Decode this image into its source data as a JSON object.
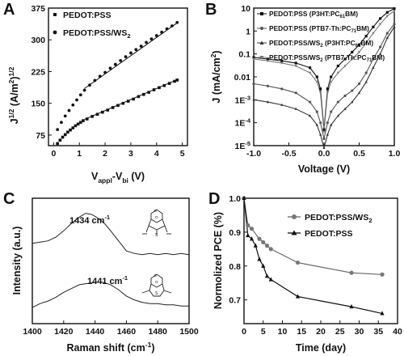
{
  "chart_data": [
    {
      "panel": "A",
      "type": "scatter",
      "xlabel": "V_appl-V_bi (V)",
      "xlabel_parts": {
        "main": "V",
        "sub1": "appl",
        "mid": "-V",
        "sub2": "bi",
        "tail": " (V)"
      },
      "ylabel": "J^1/2 (A/m^2)^1/2",
      "ylabel_parts": {
        "main": "J",
        "sup1": "1/2",
        "mid": " (A/m",
        "sup2": "2",
        "close": ")",
        "sup3": "1/2"
      },
      "xlim": [
        -0.2,
        5.2
      ],
      "ylim": [
        50,
        375
      ],
      "xticks": [
        0,
        1,
        2,
        3,
        4,
        5
      ],
      "yticks": [
        75,
        150,
        225,
        300,
        375
      ],
      "legend_position": "top-left",
      "series": [
        {
          "name": "PEDOT:PSS",
          "name_parts": {
            "main": "PEDOT:PSS",
            "sub": ""
          },
          "marker": "square",
          "fit": [
            [
              1.2,
              112
            ],
            [
              4.8,
              206
            ]
          ],
          "x": [
            0.15,
            0.25,
            0.35,
            0.45,
            0.55,
            0.65,
            0.75,
            0.85,
            0.95,
            1.05,
            1.15,
            1.3,
            1.5,
            1.7,
            1.9,
            2.1,
            2.3,
            2.5,
            2.7,
            2.9,
            3.1,
            3.3,
            3.5,
            3.7,
            3.9,
            4.1,
            4.3,
            4.5,
            4.7,
            4.8
          ],
          "y": [
            55,
            63,
            70,
            76,
            82,
            87,
            92,
            97,
            101,
            105,
            109,
            113,
            119,
            124,
            129,
            134,
            140,
            145,
            150,
            155,
            160,
            166,
            171,
            176,
            182,
            187,
            192,
            197,
            202,
            205
          ]
        },
        {
          "name": "PEDOT:PSS/WS2",
          "name_parts": {
            "main": "PEDOT:PSS/WS",
            "sub": "2"
          },
          "marker": "circle",
          "fit": [
            [
              1.2,
              185
            ],
            [
              4.8,
              340
            ]
          ],
          "x": [
            0.15,
            0.3,
            0.45,
            0.6,
            0.75,
            0.9,
            1.05,
            1.2,
            1.4,
            1.6,
            1.8,
            2.0,
            2.2,
            2.4,
            2.6,
            2.8,
            3.0,
            3.2,
            3.4,
            3.6,
            3.8,
            4.0,
            4.2,
            4.4,
            4.6,
            4.8
          ],
          "y": [
            88,
            105,
            120,
            133,
            146,
            158,
            170,
            181,
            193,
            204,
            214,
            223,
            233,
            242,
            251,
            260,
            269,
            277,
            285,
            294,
            302,
            310,
            318,
            326,
            333,
            341
          ]
        }
      ]
    },
    {
      "panel": "B",
      "type": "line",
      "yscale": "log",
      "xlabel": "Voltage (V)",
      "ylabel": "J (mA/cm^2)",
      "ylabel_parts": {
        "main": "J (mA/cm",
        "sup": "2",
        "close": ")"
      },
      "xlim": [
        -1.0,
        1.0
      ],
      "ylim": [
        1e-05,
        10
      ],
      "xticks": [
        -1.0,
        -0.5,
        0.0,
        0.5,
        1.0
      ],
      "xtick_labels": [
        "-1.0",
        "-0.5",
        "0.0",
        "0.5",
        "1.0"
      ],
      "yticks": [
        10,
        1,
        0.1,
        0.01,
        0.001,
        0.0001,
        1e-05
      ],
      "ytick_labels": [
        {
          "main": "10",
          "sup": ""
        },
        {
          "main": "1",
          "sup": ""
        },
        {
          "main": "0.1",
          "sup": ""
        },
        {
          "main": "0.01",
          "sup": ""
        },
        {
          "main": "1E",
          "sup": "-3"
        },
        {
          "main": "1E",
          "sup": "-4"
        },
        {
          "main": "1E",
          "sup": "-5"
        }
      ],
      "legend_position": "top-left",
      "series": [
        {
          "name": "PEDOT:PSS (P3HT:PC61BM)",
          "name_parts": {
            "a": "PEDOT:PSS (P3HT:PC",
            "sub": "61",
            "b": "BM)"
          },
          "marker": "square",
          "x": [
            -1.0,
            -0.8,
            -0.6,
            -0.4,
            -0.2,
            -0.1,
            -0.05,
            0.0,
            0.05,
            0.1,
            0.2,
            0.3,
            0.4,
            0.5,
            0.6,
            0.7,
            0.8,
            0.9,
            1.0
          ],
          "y": [
            0.07,
            0.06,
            0.05,
            0.04,
            0.025,
            0.01,
            0.003,
            5e-05,
            0.003,
            0.01,
            0.03,
            0.06,
            0.12,
            0.25,
            0.6,
            1.5,
            3.5,
            6.5,
            9.5
          ]
        },
        {
          "name": "PEDOT:PSS (PTB7-Th:PC71BM)",
          "name_parts": {
            "a": "PEDOT:PSS (PTB7-Th:PC",
            "sub": "71",
            "b": "BM)"
          },
          "marker": "circle",
          "x": [
            -1.0,
            -0.8,
            -0.6,
            -0.4,
            -0.2,
            -0.1,
            -0.05,
            0.0,
            0.05,
            0.1,
            0.2,
            0.3,
            0.4,
            0.5,
            0.6,
            0.7,
            0.8,
            0.9,
            1.0
          ],
          "y": [
            0.005,
            0.004,
            0.003,
            0.002,
            0.0008,
            0.0003,
            0.0001,
            2e-05,
            0.0001,
            0.0003,
            0.0008,
            0.0015,
            0.0025,
            0.005,
            0.015,
            0.06,
            0.2,
            0.8,
            2.0
          ]
        },
        {
          "name": "PEDOT:PSS/WS2 (P3HT:PC61BM)",
          "name_parts": {
            "a": "PEDOT:PSS/WS",
            "sub": "2",
            "b": " (P3HT:PC",
            "sub2": "61",
            "c": "BM)"
          },
          "marker": "triangle",
          "x": [
            -1.0,
            -0.8,
            -0.6,
            -0.4,
            -0.2,
            -0.1,
            -0.05,
            0.0,
            0.05,
            0.1,
            0.2,
            0.3,
            0.4,
            0.5,
            0.6,
            0.7,
            0.8,
            0.9,
            1.0
          ],
          "y": [
            0.001,
            0.0008,
            0.0006,
            0.0004,
            0.0002,
            8e-05,
            3e-05,
            8e-06,
            3e-05,
            8e-05,
            0.0002,
            0.0004,
            0.0008,
            0.002,
            0.006,
            0.025,
            0.1,
            0.5,
            1.5
          ]
        },
        {
          "name": "PEDOT:PSS/WS2 (PTB7-Th:PC71BM)",
          "name_parts": {
            "a": "PEDOT:PSS/WS",
            "sub": "2",
            "b": " (PTB7-Th:PC",
            "sub2": "71",
            "c": "BM)"
          },
          "marker": "triangle-down",
          "x": [
            -1.0,
            -0.8,
            -0.6,
            -0.4,
            -0.2,
            -0.1,
            -0.05,
            0.0,
            0.05,
            0.1,
            0.2,
            0.3,
            0.4,
            0.5,
            0.6,
            0.7,
            0.8,
            0.9,
            1.0
          ],
          "y": [
            0.06,
            0.05,
            0.04,
            0.03,
            0.015,
            0.006,
            0.002,
            4e-05,
            0.002,
            0.006,
            0.015,
            0.03,
            0.06,
            0.12,
            0.3,
            0.8,
            2.0,
            4.5,
            7.5
          ]
        }
      ]
    },
    {
      "panel": "C",
      "type": "line",
      "xlabel": "Raman shift (cm^-1)",
      "xlabel_parts": {
        "main": "Raman shift (cm",
        "sup": "-1",
        "close": ")"
      },
      "ylabel": "Intensity (a.u.)",
      "xlim": [
        1400,
        1500
      ],
      "xticks": [
        1400,
        1420,
        1440,
        1460,
        1480,
        1500
      ],
      "ylim": [
        0,
        1
      ],
      "show_y_ticks": false,
      "annotations": [
        {
          "label_main": "1434 cm",
          "label_sup": "-1",
          "x": 1434,
          "series": "top"
        },
        {
          "label_main": "1441 cm",
          "label_sup": "-1",
          "x": 1441,
          "series": "bottom"
        }
      ],
      "series": [
        {
          "id": "top",
          "x": [
            1400,
            1405,
            1410,
            1415,
            1420,
            1425,
            1430,
            1434,
            1438,
            1442,
            1446,
            1450,
            1455,
            1460,
            1465,
            1470,
            1475,
            1480,
            1485,
            1490,
            1495,
            1500
          ],
          "y": [
            0.64,
            0.65,
            0.66,
            0.69,
            0.74,
            0.8,
            0.85,
            0.88,
            0.87,
            0.84,
            0.8,
            0.74,
            0.66,
            0.58,
            0.56,
            0.55,
            0.56,
            0.55,
            0.56,
            0.55,
            0.56,
            0.55
          ]
        },
        {
          "id": "bottom",
          "x": [
            1400,
            1405,
            1410,
            1415,
            1420,
            1425,
            1430,
            1435,
            1441,
            1445,
            1450,
            1455,
            1460,
            1465,
            1470,
            1475,
            1480,
            1485,
            1490,
            1495,
            1500
          ],
          "y": [
            0.13,
            0.16,
            0.18,
            0.21,
            0.25,
            0.28,
            0.31,
            0.32,
            0.33,
            0.33,
            0.31,
            0.27,
            0.22,
            0.19,
            0.17,
            0.16,
            0.16,
            0.15,
            0.15,
            0.14,
            0.14
          ]
        }
      ]
    },
    {
      "panel": "D",
      "type": "line",
      "xlabel": "Time (day)",
      "ylabel": "Normolized PCE (%)",
      "xlim": [
        0,
        40
      ],
      "ylim": [
        0.63,
        1.0
      ],
      "xticks": [
        0,
        5,
        10,
        15,
        20,
        25,
        30,
        35,
        40
      ],
      "yticks": [
        0.7,
        0.8,
        0.9,
        1.0
      ],
      "ytick_labels": [
        "0.7",
        "0.8",
        "0.9",
        "1.0"
      ],
      "legend_position": "top-right",
      "series": [
        {
          "name": "PEDOT:PSS/WS2",
          "name_parts": {
            "main": "PEDOT:PSS/WS",
            "sub": "2"
          },
          "marker": "circle",
          "x": [
            0,
            1,
            2,
            4,
            5,
            6,
            7,
            14,
            28,
            36
          ],
          "y": [
            1.0,
            0.92,
            0.91,
            0.88,
            0.87,
            0.86,
            0.85,
            0.81,
            0.78,
            0.775
          ]
        },
        {
          "name": "PEDOT:PSS",
          "name_parts": {
            "main": "PEDOT:PSS",
            "sub": ""
          },
          "marker": "triangle",
          "x": [
            0,
            1,
            2,
            3,
            4,
            5,
            6,
            7,
            14,
            28,
            36
          ],
          "y": [
            1.0,
            0.89,
            0.88,
            0.86,
            0.82,
            0.8,
            0.77,
            0.76,
            0.71,
            0.68,
            0.66
          ]
        }
      ]
    }
  ]
}
